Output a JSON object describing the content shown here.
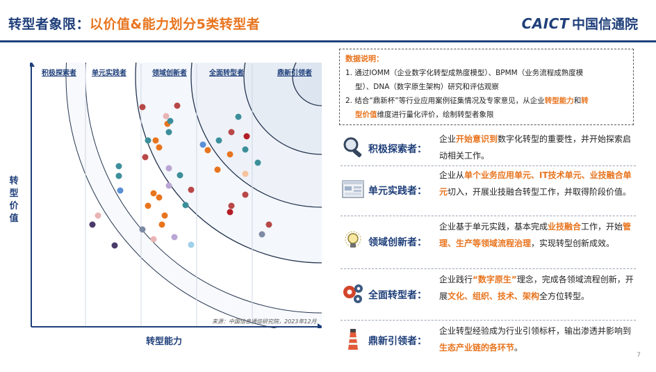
{
  "title": {
    "prefix": "转型者象限：",
    "highlight": "以价值&能力划分5类转型者"
  },
  "logo": {
    "brand": "CAICT",
    "name": "中国信通院"
  },
  "axes": {
    "y_label": "转型价值",
    "x_label": "转型能力"
  },
  "columns": [
    "积极探索者",
    "单元实践者",
    "领域创新者",
    "全面转型者",
    "鼎新引领者"
  ],
  "source": "来源：中国信息通信研究院，2023年12月",
  "notes": {
    "title": "数据说明：",
    "line1": "1.  通过IOMM（企业数字化转型成熟度模型）、BPMM（业务流程成熟度模",
    "line2": "型）、DNA（数字原生架构）研究和评估观察",
    "line3_a": "2.  结合“鼎新杯”等行业应用案例征集情况及专家意见，从企业",
    "line3_b": "转型能力",
    "line3_c": "和",
    "line3_d": "转",
    "line4_a": "型价值",
    "line4_b": "维度进行量化评价，绘制转型者象限"
  },
  "categories": [
    {
      "name": "积极探索者：",
      "icon": "magnifier-icon",
      "desc": [
        {
          "t": "企业"
        },
        {
          "t": "开始意识到",
          "hl": true
        },
        {
          "t": "数字化转型的重要性，并开始探索启动相关工作。"
        }
      ]
    },
    {
      "name": "单元实践者：",
      "icon": "window-icon",
      "desc": [
        {
          "t": "企业从"
        },
        {
          "t": "单个业务应用单元、IT技术单元、业技融合单元",
          "hl": true
        },
        {
          "t": "切入，开展业技融合转型工作，并取得阶段价值。"
        }
      ]
    },
    {
      "name": "领域创新者：",
      "icon": "lightbulb-icon",
      "desc": [
        {
          "t": "企业基于单元实践，基本完成"
        },
        {
          "t": "业技融合",
          "hl": true
        },
        {
          "t": "工作，开始"
        },
        {
          "t": "管理、生产等领域流程治理",
          "hl": true
        },
        {
          "t": "，实现转型创新成效。"
        }
      ]
    },
    {
      "name": "全面转型者：",
      "icon": "gears-icon",
      "desc": [
        {
          "t": "企业践行"
        },
        {
          "t": "“数字原生”",
          "hl": true
        },
        {
          "t": "理念，完成各领域流程创新，开展"
        },
        {
          "t": "文化、组织、技术、架构",
          "hl": true
        },
        {
          "t": "全方位转型。"
        }
      ]
    },
    {
      "name": "鼎新引领者：",
      "icon": "lighthouse-icon",
      "desc": [
        {
          "t": "企业转型经验成为行业引领标杆，输出渗透并影响到"
        },
        {
          "t": "生态产业链的各环节",
          "hl": true
        },
        {
          "t": "。"
        }
      ]
    }
  ],
  "dot_colors": {
    "red": "#b84848",
    "teal": "#3c8f9a",
    "orange": "#e8741e",
    "lavender": "#b9a6d4",
    "pink": "#e8b4b4",
    "navy": "#4a3a6a",
    "blue": "#5b8fd6",
    "darkred": "#b41d26",
    "gray": "#7d8aa5",
    "lightblue": "#9fd0e8",
    "peach": "#f5c39c"
  },
  "page_number": "7"
}
